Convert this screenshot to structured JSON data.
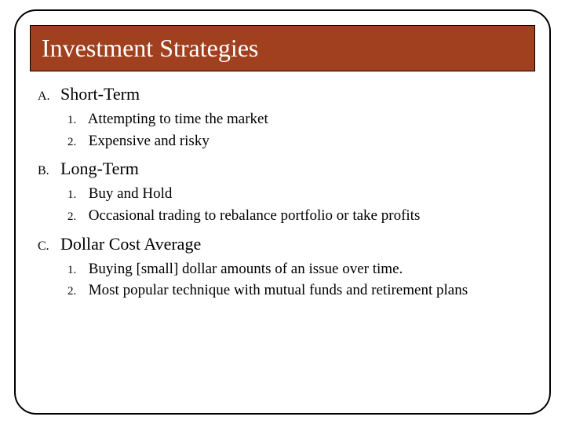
{
  "slide": {
    "title": "Investment Strategies",
    "title_bg_color": "#a0401f",
    "title_text_color": "#ffffff",
    "title_fontsize": 32,
    "frame_border_color": "#000000",
    "frame_border_radius": 28,
    "body_fontsize": 20,
    "sections": [
      {
        "marker": "A.",
        "label": "Short-Term",
        "items": [
          {
            "marker": "1.",
            "text": "Attempting to time the market"
          },
          {
            "marker": "2.",
            "text": "Expensive and risky"
          }
        ]
      },
      {
        "marker": "B.",
        "label": "Long-Term",
        "items": [
          {
            "marker": "1.",
            "text": "Buy and Hold"
          },
          {
            "marker": "2.",
            "text": "Occasional trading to rebalance portfolio or take profits"
          }
        ]
      },
      {
        "marker": "C.",
        "label": "Dollar Cost Average",
        "items": [
          {
            "marker": "1.",
            "text": "Buying [small] dollar amounts of an issue over time."
          },
          {
            "marker": "2.",
            "text": "Most popular technique with mutual funds and retirement plans"
          }
        ]
      }
    ]
  }
}
